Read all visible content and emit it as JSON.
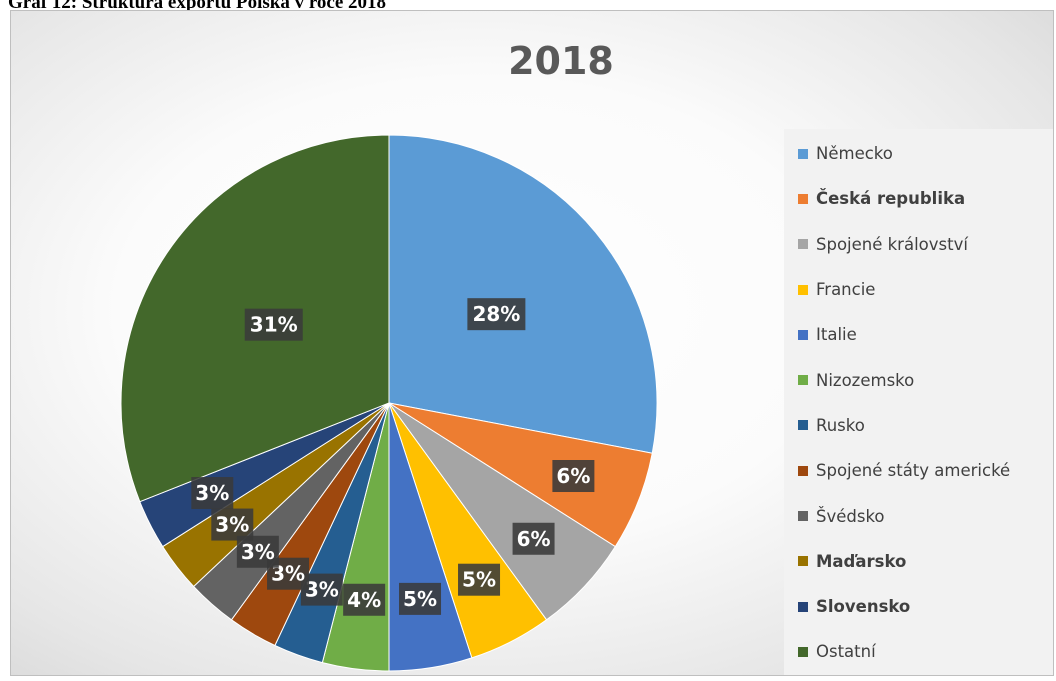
{
  "caption": "Graf 12: Struktura exportu Polska v roce 2018",
  "chart_data": {
    "type": "pie",
    "title": "2018",
    "legend_position": "right",
    "start_angle_deg": 0,
    "direction": "clockwise",
    "slices": [
      {
        "name": "Německo",
        "value": 28,
        "label": "28%",
        "color": "#5b9bd5",
        "legend_bold": false
      },
      {
        "name": "Česká republika",
        "value": 6,
        "label": "6%",
        "color": "#ed7d31",
        "legend_bold": true
      },
      {
        "name": "Spojené království",
        "value": 6,
        "label": "6%",
        "color": "#a5a5a5",
        "legend_bold": false
      },
      {
        "name": "Francie",
        "value": 5,
        "label": "5%",
        "color": "#ffc000",
        "legend_bold": false
      },
      {
        "name": "Italie",
        "value": 5,
        "label": "5%",
        "color": "#4472c4",
        "legend_bold": false
      },
      {
        "name": "Nizozemsko",
        "value": 4,
        "label": "4%",
        "color": "#70ad47",
        "legend_bold": false
      },
      {
        "name": "Rusko",
        "value": 3,
        "label": "3%",
        "color": "#255e91",
        "legend_bold": false
      },
      {
        "name": "Spojené státy americké",
        "value": 3,
        "label": "3%",
        "color": "#9e480e",
        "legend_bold": false
      },
      {
        "name": "Švédsko",
        "value": 3,
        "label": "3%",
        "color": "#636363",
        "legend_bold": false
      },
      {
        "name": "Maďarsko",
        "value": 3,
        "label": "3%",
        "color": "#997300",
        "legend_bold": true
      },
      {
        "name": "Slovensko",
        "value": 3,
        "label": "3%",
        "color": "#264478",
        "legend_bold": true
      },
      {
        "name": "Ostatní",
        "value": 31,
        "label": "31%",
        "color": "#43682b",
        "legend_bold": false
      }
    ]
  }
}
